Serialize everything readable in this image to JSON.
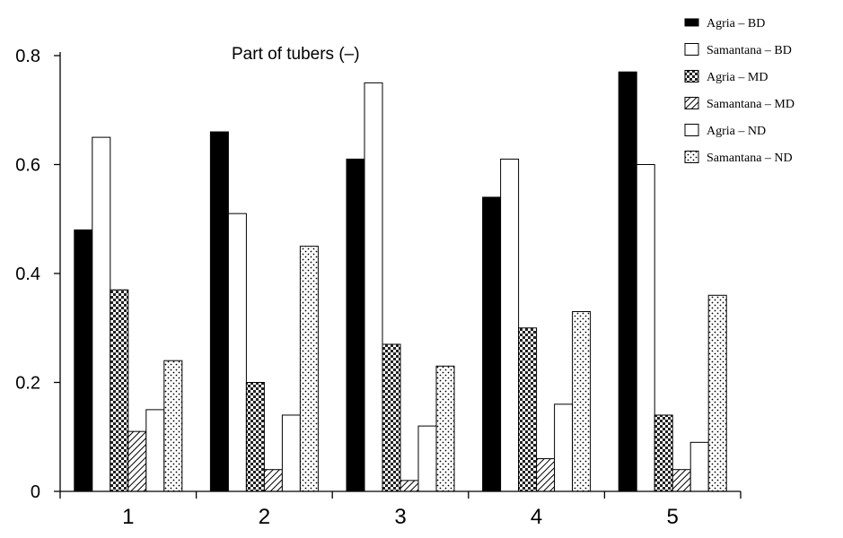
{
  "chart_data": {
    "type": "bar",
    "title": "Part of tubers (–)",
    "xlabel": "",
    "ylabel": "",
    "categories": [
      "1",
      "2",
      "3",
      "4",
      "5"
    ],
    "ylim": [
      0,
      0.8
    ],
    "yticks": [
      "0",
      "0.2",
      "0.4",
      "0.6",
      "0.8"
    ],
    "grid": false,
    "legend_position": "top-right",
    "series": [
      {
        "name": "Agria – BD",
        "pattern": "solid-black",
        "values": [
          0.48,
          0.66,
          0.61,
          0.54,
          0.77
        ]
      },
      {
        "name": "Samantana – BD",
        "pattern": "white",
        "values": [
          0.65,
          0.51,
          0.75,
          0.61,
          0.6
        ]
      },
      {
        "name": "Agria – MD",
        "pattern": "checker",
        "values": [
          0.37,
          0.2,
          0.27,
          0.3,
          0.14
        ]
      },
      {
        "name": "Samantana – MD",
        "pattern": "diagonal-hatch",
        "values": [
          0.11,
          0.04,
          0.02,
          0.06,
          0.04
        ]
      },
      {
        "name": "Agria – ND",
        "pattern": "white",
        "values": [
          0.15,
          0.14,
          0.12,
          0.16,
          0.09
        ]
      },
      {
        "name": "Samantana – ND",
        "pattern": "dotted",
        "values": [
          0.24,
          0.45,
          0.23,
          0.33,
          0.36
        ]
      }
    ]
  }
}
